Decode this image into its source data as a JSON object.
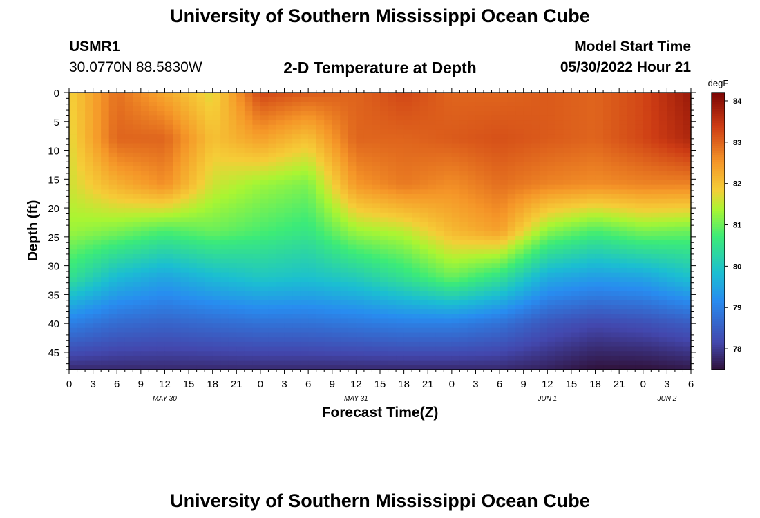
{
  "header": {
    "title": "University of Southern Mississippi Ocean Cube",
    "station_id": "USMR1",
    "station_coords": "30.0770N  88.5830W",
    "subtitle": "2-D Temperature at Depth",
    "model_start_label": "Model Start Time",
    "model_start_value": "05/30/2022 Hour 21"
  },
  "footer": {
    "title": "University of Southern Mississippi Ocean Cube"
  },
  "chart_data": {
    "type": "heatmap",
    "title": "2-D Temperature at Depth",
    "xlabel": "Forecast Time(Z)",
    "ylabel": "Depth (ft)",
    "xlim": [
      0,
      78
    ],
    "ylim": [
      0,
      48
    ],
    "x_tick_labels": [
      "0",
      "3",
      "6",
      "9",
      "12",
      "15",
      "18",
      "21",
      "0",
      "3",
      "6",
      "9",
      "12",
      "15",
      "18",
      "21",
      "0",
      "3",
      "6",
      "9",
      "12",
      "15",
      "18",
      "21",
      "0",
      "3",
      "6"
    ],
    "y_ticks": [
      0,
      5,
      10,
      15,
      20,
      25,
      30,
      35,
      40,
      45
    ],
    "date_labels": [
      {
        "label": "MAY 30",
        "hour": 12
      },
      {
        "label": "MAY 31",
        "hour": 36
      },
      {
        "label": "JUN 1",
        "hour": 60
      },
      {
        "label": "JUN 2",
        "hour": 75
      }
    ],
    "colorbar": {
      "unit": "degF",
      "min": 77.5,
      "max": 84.2,
      "ticks": [
        78,
        79,
        80,
        81,
        82,
        83,
        84
      ]
    },
    "grid_hours": [
      0,
      6,
      12,
      18,
      24,
      30,
      36,
      42,
      48,
      54,
      60,
      66,
      72,
      78
    ],
    "grid_depths_ft": [
      0,
      8,
      16,
      24,
      32,
      40,
      48
    ],
    "temperature_degF": [
      [
        81.8,
        82.9,
        82.3,
        81.7,
        83.3,
        83.1,
        83.0,
        83.3,
        83.0,
        83.0,
        83.1,
        83.0,
        83.3,
        83.9
      ],
      [
        81.7,
        83.0,
        83.0,
        82.0,
        82.4,
        82.0,
        83.0,
        83.0,
        83.1,
        83.2,
        83.1,
        83.0,
        83.3,
        83.7
      ],
      [
        81.6,
        82.2,
        82.6,
        81.6,
        81.3,
        81.1,
        82.5,
        82.8,
        82.6,
        82.9,
        82.7,
        82.6,
        82.7,
        82.7
      ],
      [
        81.3,
        81.1,
        80.8,
        81.0,
        80.8,
        80.6,
        81.3,
        81.5,
        82.1,
        82.4,
        81.2,
        80.8,
        81.1,
        81.0
      ],
      [
        80.5,
        79.8,
        79.5,
        79.8,
        80.0,
        79.9,
        80.1,
        80.5,
        81.0,
        80.5,
        79.6,
        79.4,
        79.5,
        79.9
      ],
      [
        79.0,
        78.7,
        78.6,
        78.7,
        78.8,
        78.8,
        78.9,
        79.0,
        79.0,
        78.8,
        78.4,
        78.2,
        78.3,
        78.5
      ],
      [
        77.8,
        77.8,
        77.8,
        77.8,
        77.8,
        77.8,
        77.8,
        77.8,
        77.8,
        77.8,
        77.7,
        77.5,
        77.5,
        77.6
      ]
    ]
  }
}
